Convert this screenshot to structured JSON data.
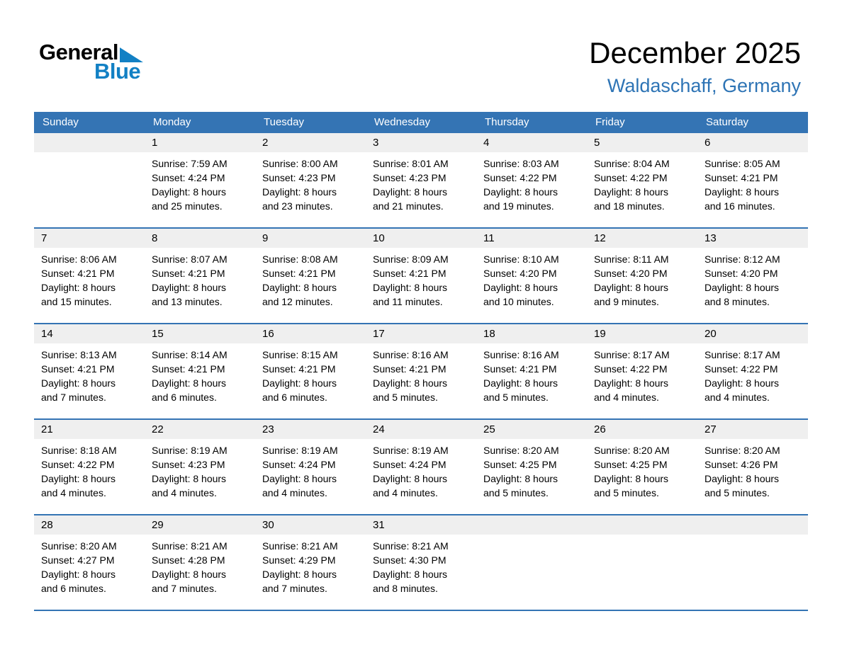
{
  "logo": {
    "general": "General",
    "blue": "Blue"
  },
  "header": {
    "title": "December 2025",
    "subtitle": "Waldaschaff, Germany"
  },
  "colors": {
    "header_bar_blue": "#3474b4",
    "row_separator_blue": "#3474b4",
    "subtitle_blue": "#2e74b5",
    "logo_blue": "#1280c4",
    "day_strip_gray": "#efefef",
    "weekday_text": "#ffffff",
    "body_text": "#000000"
  },
  "calendar": {
    "weekdays": [
      "Sunday",
      "Monday",
      "Tuesday",
      "Wednesday",
      "Thursday",
      "Friday",
      "Saturday"
    ],
    "weeks": [
      [
        null,
        {
          "day": "1",
          "sunrise": "Sunrise: 7:59 AM",
          "sunset": "Sunset: 4:24 PM",
          "daylight1": "Daylight: 8 hours",
          "daylight2": "and 25 minutes."
        },
        {
          "day": "2",
          "sunrise": "Sunrise: 8:00 AM",
          "sunset": "Sunset: 4:23 PM",
          "daylight1": "Daylight: 8 hours",
          "daylight2": "and 23 minutes."
        },
        {
          "day": "3",
          "sunrise": "Sunrise: 8:01 AM",
          "sunset": "Sunset: 4:23 PM",
          "daylight1": "Daylight: 8 hours",
          "daylight2": "and 21 minutes."
        },
        {
          "day": "4",
          "sunrise": "Sunrise: 8:03 AM",
          "sunset": "Sunset: 4:22 PM",
          "daylight1": "Daylight: 8 hours",
          "daylight2": "and 19 minutes."
        },
        {
          "day": "5",
          "sunrise": "Sunrise: 8:04 AM",
          "sunset": "Sunset: 4:22 PM",
          "daylight1": "Daylight: 8 hours",
          "daylight2": "and 18 minutes."
        },
        {
          "day": "6",
          "sunrise": "Sunrise: 8:05 AM",
          "sunset": "Sunset: 4:21 PM",
          "daylight1": "Daylight: 8 hours",
          "daylight2": "and 16 minutes."
        }
      ],
      [
        {
          "day": "7",
          "sunrise": "Sunrise: 8:06 AM",
          "sunset": "Sunset: 4:21 PM",
          "daylight1": "Daylight: 8 hours",
          "daylight2": "and 15 minutes."
        },
        {
          "day": "8",
          "sunrise": "Sunrise: 8:07 AM",
          "sunset": "Sunset: 4:21 PM",
          "daylight1": "Daylight: 8 hours",
          "daylight2": "and 13 minutes."
        },
        {
          "day": "9",
          "sunrise": "Sunrise: 8:08 AM",
          "sunset": "Sunset: 4:21 PM",
          "daylight1": "Daylight: 8 hours",
          "daylight2": "and 12 minutes."
        },
        {
          "day": "10",
          "sunrise": "Sunrise: 8:09 AM",
          "sunset": "Sunset: 4:21 PM",
          "daylight1": "Daylight: 8 hours",
          "daylight2": "and 11 minutes."
        },
        {
          "day": "11",
          "sunrise": "Sunrise: 8:10 AM",
          "sunset": "Sunset: 4:20 PM",
          "daylight1": "Daylight: 8 hours",
          "daylight2": "and 10 minutes."
        },
        {
          "day": "12",
          "sunrise": "Sunrise: 8:11 AM",
          "sunset": "Sunset: 4:20 PM",
          "daylight1": "Daylight: 8 hours",
          "daylight2": "and 9 minutes."
        },
        {
          "day": "13",
          "sunrise": "Sunrise: 8:12 AM",
          "sunset": "Sunset: 4:20 PM",
          "daylight1": "Daylight: 8 hours",
          "daylight2": "and 8 minutes."
        }
      ],
      [
        {
          "day": "14",
          "sunrise": "Sunrise: 8:13 AM",
          "sunset": "Sunset: 4:21 PM",
          "daylight1": "Daylight: 8 hours",
          "daylight2": "and 7 minutes."
        },
        {
          "day": "15",
          "sunrise": "Sunrise: 8:14 AM",
          "sunset": "Sunset: 4:21 PM",
          "daylight1": "Daylight: 8 hours",
          "daylight2": "and 6 minutes."
        },
        {
          "day": "16",
          "sunrise": "Sunrise: 8:15 AM",
          "sunset": "Sunset: 4:21 PM",
          "daylight1": "Daylight: 8 hours",
          "daylight2": "and 6 minutes."
        },
        {
          "day": "17",
          "sunrise": "Sunrise: 8:16 AM",
          "sunset": "Sunset: 4:21 PM",
          "daylight1": "Daylight: 8 hours",
          "daylight2": "and 5 minutes."
        },
        {
          "day": "18",
          "sunrise": "Sunrise: 8:16 AM",
          "sunset": "Sunset: 4:21 PM",
          "daylight1": "Daylight: 8 hours",
          "daylight2": "and 5 minutes."
        },
        {
          "day": "19",
          "sunrise": "Sunrise: 8:17 AM",
          "sunset": "Sunset: 4:22 PM",
          "daylight1": "Daylight: 8 hours",
          "daylight2": "and 4 minutes."
        },
        {
          "day": "20",
          "sunrise": "Sunrise: 8:17 AM",
          "sunset": "Sunset: 4:22 PM",
          "daylight1": "Daylight: 8 hours",
          "daylight2": "and 4 minutes."
        }
      ],
      [
        {
          "day": "21",
          "sunrise": "Sunrise: 8:18 AM",
          "sunset": "Sunset: 4:22 PM",
          "daylight1": "Daylight: 8 hours",
          "daylight2": "and 4 minutes."
        },
        {
          "day": "22",
          "sunrise": "Sunrise: 8:19 AM",
          "sunset": "Sunset: 4:23 PM",
          "daylight1": "Daylight: 8 hours",
          "daylight2": "and 4 minutes."
        },
        {
          "day": "23",
          "sunrise": "Sunrise: 8:19 AM",
          "sunset": "Sunset: 4:24 PM",
          "daylight1": "Daylight: 8 hours",
          "daylight2": "and 4 minutes."
        },
        {
          "day": "24",
          "sunrise": "Sunrise: 8:19 AM",
          "sunset": "Sunset: 4:24 PM",
          "daylight1": "Daylight: 8 hours",
          "daylight2": "and 4 minutes."
        },
        {
          "day": "25",
          "sunrise": "Sunrise: 8:20 AM",
          "sunset": "Sunset: 4:25 PM",
          "daylight1": "Daylight: 8 hours",
          "daylight2": "and 5 minutes."
        },
        {
          "day": "26",
          "sunrise": "Sunrise: 8:20 AM",
          "sunset": "Sunset: 4:25 PM",
          "daylight1": "Daylight: 8 hours",
          "daylight2": "and 5 minutes."
        },
        {
          "day": "27",
          "sunrise": "Sunrise: 8:20 AM",
          "sunset": "Sunset: 4:26 PM",
          "daylight1": "Daylight: 8 hours",
          "daylight2": "and 5 minutes."
        }
      ],
      [
        {
          "day": "28",
          "sunrise": "Sunrise: 8:20 AM",
          "sunset": "Sunset: 4:27 PM",
          "daylight1": "Daylight: 8 hours",
          "daylight2": "and 6 minutes."
        },
        {
          "day": "29",
          "sunrise": "Sunrise: 8:21 AM",
          "sunset": "Sunset: 4:28 PM",
          "daylight1": "Daylight: 8 hours",
          "daylight2": "and 7 minutes."
        },
        {
          "day": "30",
          "sunrise": "Sunrise: 8:21 AM",
          "sunset": "Sunset: 4:29 PM",
          "daylight1": "Daylight: 8 hours",
          "daylight2": "and 7 minutes."
        },
        {
          "day": "31",
          "sunrise": "Sunrise: 8:21 AM",
          "sunset": "Sunset: 4:30 PM",
          "daylight1": "Daylight: 8 hours",
          "daylight2": "and 8 minutes."
        },
        null,
        null,
        null
      ]
    ]
  }
}
